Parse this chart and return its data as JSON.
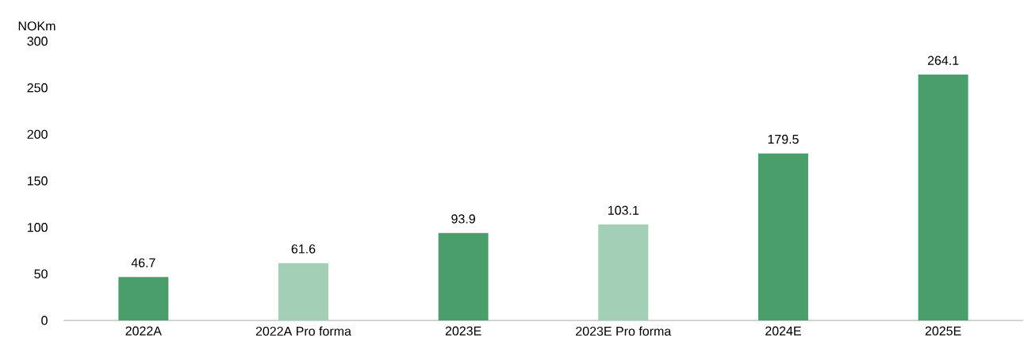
{
  "chart_data": {
    "type": "bar",
    "ylabel": "NOKm",
    "categories": [
      "2022A",
      "2022A Pro forma",
      "2023E",
      "2023E Pro forma",
      "2024E",
      "2025E"
    ],
    "values": [
      46.7,
      61.6,
      93.9,
      103.1,
      179.5,
      264.1
    ],
    "colors": [
      "#4a9e6c",
      "#a3cfb6",
      "#4a9e6c",
      "#a3cfb6",
      "#4a9e6c",
      "#4a9e6c"
    ],
    "ylim": [
      0,
      300
    ],
    "yticks": [
      0,
      50,
      100,
      150,
      200,
      250,
      300
    ],
    "data_labels": true,
    "grid": false
  }
}
